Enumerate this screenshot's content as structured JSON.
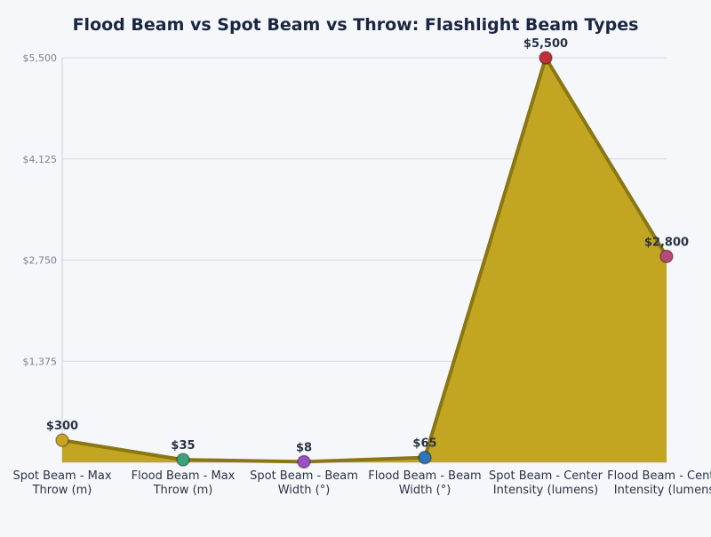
{
  "chart_data": {
    "type": "area",
    "title": "Flood Beam vs Spot Beam vs Throw: Flashlight Beam Types",
    "xlabel": "",
    "ylabel": "",
    "categories": [
      [
        "Spot Beam - Max",
        "Throw (m)"
      ],
      [
        "Flood Beam - Max",
        "Throw (m)"
      ],
      [
        "Spot Beam - Beam",
        "Width (°)"
      ],
      [
        "Flood Beam - Beam",
        "Width (°)"
      ],
      [
        "Spot Beam - Center",
        "Intensity (lumens)"
      ],
      [
        "Flood Beam - Center",
        "Intensity (lumens)"
      ]
    ],
    "values": [
      300,
      35,
      8,
      65,
      5500,
      2800
    ],
    "data_labels": [
      "$300",
      "$35",
      "$8",
      "$65",
      "$5,500",
      "$2,800"
    ],
    "ylim": [
      0,
      5500
    ],
    "yticks": [
      1375,
      2750,
      4125,
      5500
    ],
    "ytick_labels": [
      "$1,375",
      "$2,750",
      "$4,125",
      "$5,500"
    ],
    "grid": true,
    "legend": "none",
    "colors": {
      "area": "#c2a520",
      "line": "#8a7614",
      "markers": [
        "#c9a424",
        "#3fa37a",
        "#9b4fc0",
        "#2f74b8",
        "#c0303a",
        "#b84a78"
      ]
    }
  }
}
